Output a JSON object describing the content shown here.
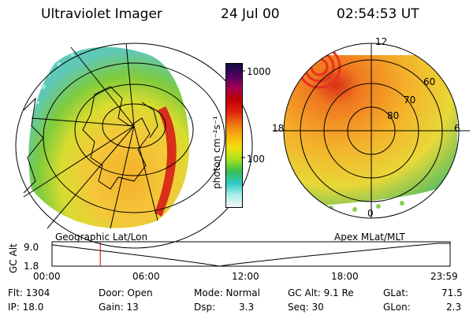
{
  "header": {
    "instrument": "Ultraviolet Imager",
    "date": "24 Jul 00",
    "time": "02:54:53 UT"
  },
  "colorbar": {
    "unit_label": "photon cm⁻²s⁻¹",
    "ticks": [
      "1000",
      "100"
    ],
    "colors": [
      "#f4f4f4",
      "#a8f0e8",
      "#30c8c8",
      "#38c050",
      "#a8e020",
      "#f0e010",
      "#f8b010",
      "#f07010",
      "#e02010",
      "#c00000",
      "#a00050",
      "#500060",
      "#101040"
    ]
  },
  "left_map": {
    "caption": "Geographic Lat/Lon"
  },
  "right_map": {
    "caption": "Apex MLat/MLT",
    "mlt_labels": {
      "top": "12",
      "left": "18",
      "right": "6",
      "bottom": "0"
    },
    "lat_labels": [
      "60",
      "70",
      "80"
    ]
  },
  "altitude_plot": {
    "ylabel": "GC Alt",
    "y_ticks": [
      "9.0",
      "1.8"
    ],
    "x_ticks": [
      "00:00",
      "06:00",
      "12:00",
      "18:00",
      "23:59"
    ],
    "marker_time_hours": 2.91,
    "curve_color": "#000000",
    "marker_color": "#cc0000"
  },
  "info": {
    "flt": "Flt: 1304",
    "ip": "IP: 18.0",
    "door": "Door: Open",
    "gain": "Gain: 13",
    "mode": "Mode: Normal",
    "dsp_label": "Dsp:",
    "dsp_value": "3.3",
    "gc_alt": "GC Alt: 9.1 Re",
    "seq": "Seq: 30",
    "glat_label": "GLat:",
    "glat_value": "71.5",
    "glon_label": "GLon:",
    "glon_value": "2.3"
  }
}
